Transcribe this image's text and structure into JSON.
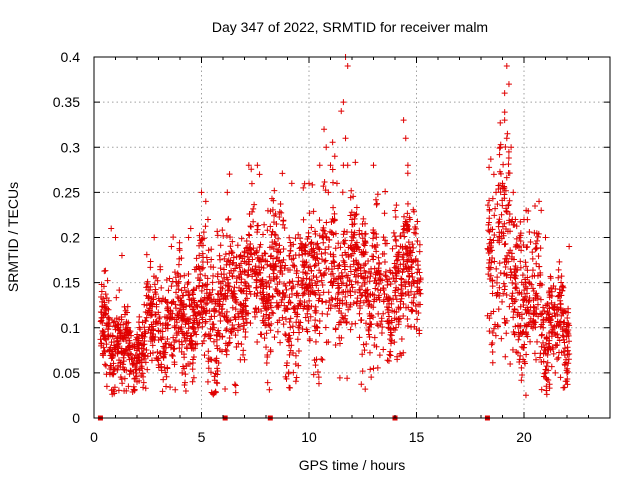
{
  "chart_data": {
    "type": "scatter",
    "title": "Day 347 of 2022, SRMTID for receiver malm",
    "xlabel": "GPS time / hours",
    "ylabel": "SRMTID / TECUs",
    "xlim": [
      0,
      24
    ],
    "ylim": [
      0,
      0.4
    ],
    "x_ticks": [
      0,
      5,
      10,
      15,
      20
    ],
    "x_tick_labels": [
      "0",
      "5",
      "10",
      "15",
      "20"
    ],
    "y_ticks": [
      0,
      0.05,
      0.1,
      0.15,
      0.2,
      0.25,
      0.3,
      0.35,
      0.4
    ],
    "y_tick_labels": [
      "0",
      "0.05",
      "0.1",
      "0.15",
      "0.2",
      "0.25",
      "0.3",
      "0.35",
      "0.4"
    ],
    "grid": true,
    "marker": "plus",
    "series_color": "#e00000",
    "series": [
      {
        "name": "SRMTID",
        "density_profile": [
          {
            "x": 0.3,
            "y": 0.105,
            "spread": 0.03
          },
          {
            "x": 1.0,
            "y": 0.09,
            "spread": 0.03
          },
          {
            "x": 1.6,
            "y": 0.06,
            "spread": 0.02
          },
          {
            "x": 2.5,
            "y": 0.1,
            "spread": 0.035
          },
          {
            "x": 3.5,
            "y": 0.1,
            "spread": 0.035
          },
          {
            "x": 4.5,
            "y": 0.11,
            "spread": 0.04
          },
          {
            "x": 5.5,
            "y": 0.12,
            "spread": 0.045
          },
          {
            "x": 6.5,
            "y": 0.13,
            "spread": 0.04
          },
          {
            "x": 7.5,
            "y": 0.16,
            "spread": 0.04
          },
          {
            "x": 8.5,
            "y": 0.15,
            "spread": 0.045
          },
          {
            "x": 9.5,
            "y": 0.13,
            "spread": 0.045
          },
          {
            "x": 10.5,
            "y": 0.17,
            "spread": 0.05
          },
          {
            "x": 11.5,
            "y": 0.16,
            "spread": 0.045
          },
          {
            "x": 12.5,
            "y": 0.15,
            "spread": 0.045
          },
          {
            "x": 13.5,
            "y": 0.13,
            "spread": 0.04
          },
          {
            "x": 14.5,
            "y": 0.16,
            "spread": 0.045
          },
          {
            "x": 15.1,
            "y": 0.16,
            "spread": 0.04
          },
          {
            "x": 18.4,
            "y": 0.18,
            "spread": 0.05
          },
          {
            "x": 19.0,
            "y": 0.2,
            "spread": 0.07
          },
          {
            "x": 19.7,
            "y": 0.14,
            "spread": 0.05
          },
          {
            "x": 20.5,
            "y": 0.13,
            "spread": 0.045
          },
          {
            "x": 21.3,
            "y": 0.1,
            "spread": 0.035
          },
          {
            "x": 22.0,
            "y": 0.09,
            "spread": 0.03
          }
        ],
        "points": [
          [
            10.7,
            0.32
          ],
          [
            10.8,
            0.3
          ],
          [
            10.5,
            0.28
          ],
          [
            11.0,
            0.28
          ],
          [
            10.9,
            0.25
          ],
          [
            11.2,
            0.29
          ],
          [
            11.3,
            0.26
          ],
          [
            11.6,
            0.28
          ],
          [
            11.7,
            0.4
          ],
          [
            11.8,
            0.39
          ],
          [
            11.6,
            0.35
          ],
          [
            11.5,
            0.34
          ],
          [
            11.7,
            0.31
          ],
          [
            11.8,
            0.28
          ],
          [
            12.0,
            0.22
          ],
          [
            13.0,
            0.28
          ],
          [
            7.2,
            0.28
          ],
          [
            7.6,
            0.28
          ],
          [
            7.7,
            0.27
          ],
          [
            6.2,
            0.25
          ],
          [
            5.0,
            0.25
          ],
          [
            5.2,
            0.24
          ],
          [
            5.3,
            0.22
          ],
          [
            10.0,
            0.26
          ],
          [
            9.2,
            0.26
          ],
          [
            14.4,
            0.33
          ],
          [
            14.5,
            0.31
          ],
          [
            14.6,
            0.28
          ],
          [
            14.7,
            0.22
          ],
          [
            18.6,
            0.27
          ],
          [
            18.7,
            0.25
          ],
          [
            18.9,
            0.3
          ],
          [
            19.0,
            0.26
          ],
          [
            19.1,
            0.36
          ],
          [
            19.2,
            0.39
          ],
          [
            19.3,
            0.37
          ],
          [
            19.1,
            0.33
          ],
          [
            19.2,
            0.31
          ],
          [
            19.4,
            0.3
          ],
          [
            19.5,
            0.25
          ],
          [
            19.6,
            0.22
          ],
          [
            20.0,
            0.22
          ],
          [
            20.1,
            0.23
          ],
          [
            20.7,
            0.24
          ],
          [
            20.8,
            0.23
          ],
          [
            21.0,
            0.2
          ],
          [
            22.1,
            0.19
          ],
          [
            1.4,
            0.03
          ],
          [
            1.5,
            0.03
          ],
          [
            1.6,
            0.035
          ],
          [
            0.6,
            0.035
          ],
          [
            2.0,
            0.04
          ],
          [
            4.1,
            0.05
          ],
          [
            5.3,
            0.04
          ],
          [
            13.0,
            0.055
          ],
          [
            14.1,
            0.065
          ],
          [
            19.8,
            0.065
          ],
          [
            21.7,
            0.045
          ],
          [
            22.0,
            0.05
          ],
          [
            21.1,
            0.07
          ],
          [
            0.8,
            0.21
          ],
          [
            1.0,
            0.2
          ],
          [
            1.3,
            0.18
          ],
          [
            2.8,
            0.2
          ],
          [
            3.6,
            0.19
          ],
          [
            4.4,
            0.2
          ],
          [
            4.5,
            0.21
          ]
        ],
        "zero_points": [
          0.3,
          6.1,
          8.2,
          14.0,
          18.3
        ]
      }
    ]
  }
}
